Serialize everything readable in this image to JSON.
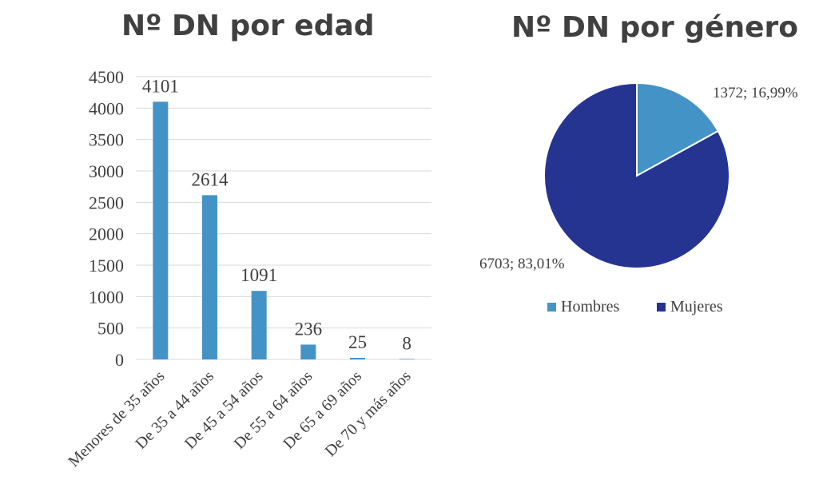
{
  "bar_chart_title": "Nº DN por edad",
  "pie_chart_title": "Nº DN por género",
  "colors": {
    "bar": "#4393c7",
    "hombres": "#4393c7",
    "mujeres": "#253490",
    "grid": "#d9d9d9",
    "text": "#404040"
  },
  "chart_data": [
    {
      "type": "bar",
      "title": "Nº DN por edad",
      "categories": [
        "Menores de 35 años",
        "De 35 a 44 años",
        "De 45 a 54 años",
        "De 55 a 64 años",
        "De 65 a 69 años",
        "De 70 y más años"
      ],
      "values": [
        4101,
        2614,
        1091,
        236,
        25,
        8
      ],
      "data_labels": [
        "4101",
        "2614",
        "1091",
        "236",
        "25",
        "8"
      ],
      "yticks": [
        0,
        500,
        1000,
        1500,
        2000,
        2500,
        3000,
        3500,
        4000,
        4500
      ],
      "ylim": [
        0,
        4500
      ],
      "grid": true,
      "legend": "none"
    },
    {
      "type": "pie",
      "title": "Nº DN por género",
      "slices": [
        {
          "label": "Hombres",
          "value": 1372,
          "percent": 16.99,
          "data_label": "1372; 16,99%",
          "color": "#4393c7"
        },
        {
          "label": "Mujeres",
          "value": 6703,
          "percent": 83.01,
          "data_label": "6703; 83,01%",
          "color": "#253490"
        }
      ],
      "legend": "bottom"
    }
  ]
}
